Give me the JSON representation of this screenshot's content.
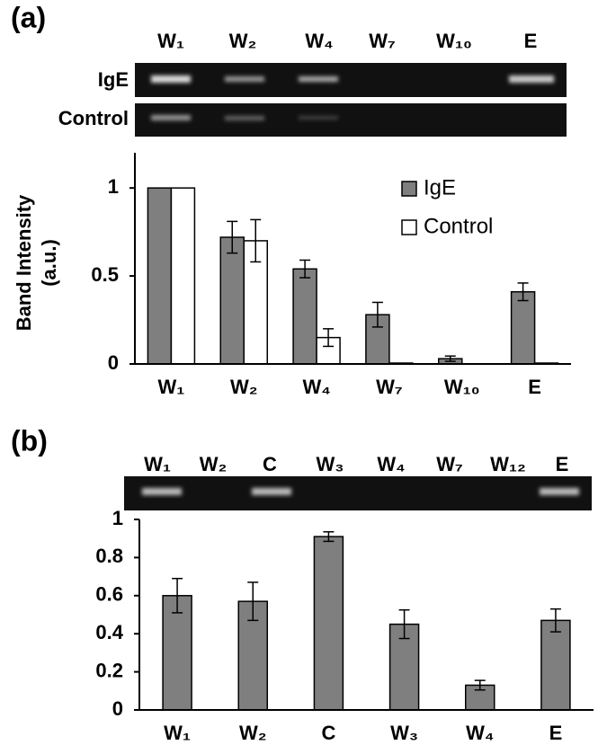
{
  "panels": [
    {
      "label": "(a)",
      "lanes": [
        "W₁",
        "W₂",
        "W₄",
        "W₇",
        "W₁₀",
        "E"
      ],
      "rows": [
        "IgE",
        "Control"
      ]
    },
    {
      "label": "(b)",
      "lanes": [
        "W₁",
        "W₂",
        "C",
        "W₃",
        "W₄",
        "W₇",
        "W₁₂",
        "E"
      ]
    }
  ],
  "chart_data": [
    {
      "type": "bar",
      "y_label": [
        "Band Intensity",
        "(a.u.)"
      ],
      "categories": [
        "W₁",
        "W₂",
        "W₄",
        "W₇",
        "W₁₀",
        "E"
      ],
      "series": [
        {
          "name": "IgE",
          "color": "#7f7f7f",
          "values": [
            1,
            0.72,
            0.54,
            0.28,
            0.03,
            0.41
          ],
          "errors": [
            0,
            0.09,
            0.05,
            0.07,
            0.015,
            0.05
          ]
        },
        {
          "name": "Control",
          "color": "#ffffff",
          "values": [
            1,
            0.7,
            0.15,
            0.005,
            0,
            0.005
          ],
          "errors": [
            0,
            0.12,
            0.05,
            0,
            0,
            0
          ]
        }
      ],
      "ylim": [
        0,
        1.2
      ],
      "yticks": [
        0,
        0.5,
        1
      ],
      "legend": "top-right"
    },
    {
      "type": "bar",
      "categories": [
        "W₁",
        "W₂",
        "C",
        "W₃",
        "W₄",
        "E"
      ],
      "series": [
        {
          "color": "#7f7f7f",
          "values": [
            0.6,
            0.57,
            0.91,
            0.45,
            0.13,
            0.47
          ],
          "errors": [
            0.09,
            0.1,
            0.025,
            0.075,
            0.025,
            0.06
          ]
        }
      ],
      "ylim": [
        0,
        1
      ],
      "yticks": [
        0,
        0.2,
        0.4,
        0.6,
        0.8,
        1
      ]
    }
  ]
}
